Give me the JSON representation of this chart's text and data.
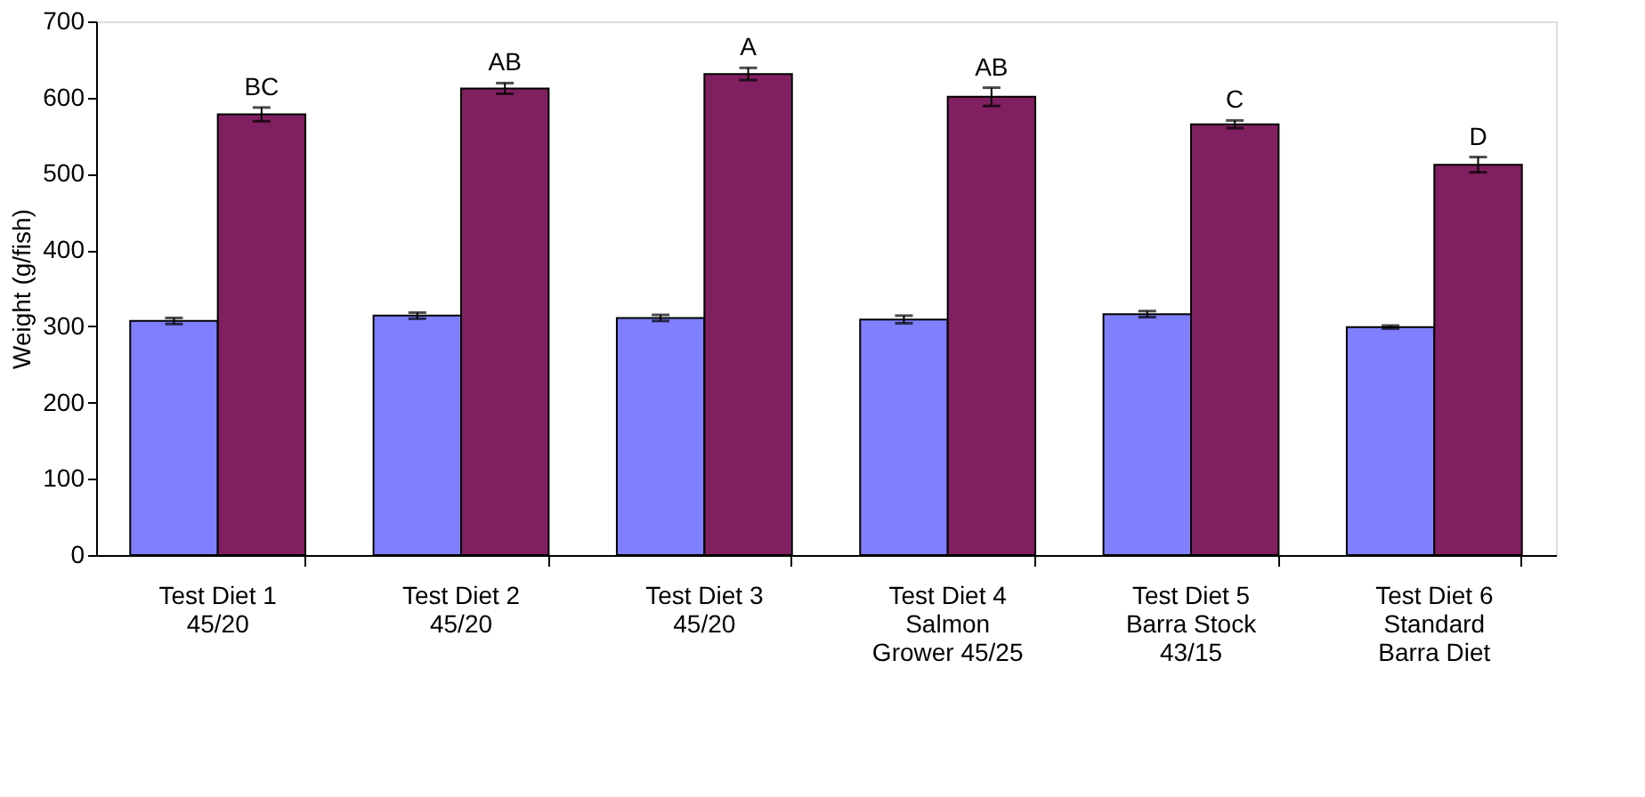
{
  "chart_data": {
    "type": "bar",
    "ylabel": "Weight (g/fish)",
    "categories": [
      "Test Diet 1\n45/20",
      "Test Diet 2\n45/20",
      "Test Diet 3\n45/20",
      "Test Diet 4\nSalmon\nGrower 45/25",
      "Test Diet 5\nBarra Stock\n43/15",
      "Test Diet 6\nStandard\nBarra Diet"
    ],
    "series": [
      {
        "color": "#8080ff",
        "values": [
          307,
          314,
          311,
          309,
          316,
          299
        ],
        "errors": [
          4,
          4,
          4,
          5,
          4,
          2
        ]
      },
      {
        "color": "#802060",
        "values": [
          578,
          612,
          631,
          601,
          565,
          512
        ],
        "errors": [
          9,
          7,
          8,
          12,
          5,
          10
        ]
      }
    ],
    "ylim": [
      0,
      700
    ],
    "yticks": [
      0,
      100,
      200,
      300,
      400,
      500,
      600,
      700
    ],
    "grid": false,
    "legend": false,
    "annotations": [
      {
        "text": "BC",
        "x": "Test Diet 1\n45/20",
        "y": 587
      },
      {
        "text": "AB",
        "x": "Test Diet 2\n45/20",
        "y": 619
      },
      {
        "text": "A",
        "x": "Test Diet 3\n45/20",
        "y": 639
      },
      {
        "text": "AB",
        "x": "Test Diet 4\nSalmon\nGrower 45/25",
        "y": 613
      },
      {
        "text": "C",
        "x": "Test Diet 5\nBarra Stock\n43/15",
        "y": 570
      },
      {
        "text": "D",
        "x": "Test Diet 6\nStandard\nBarra Diet",
        "y": 522
      }
    ]
  }
}
